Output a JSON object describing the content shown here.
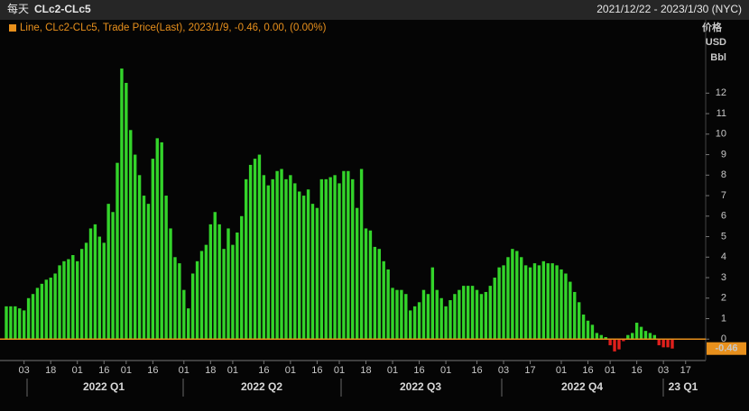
{
  "chart_data": {
    "type": "bar",
    "period": "每天",
    "title": "CLc2-CLc5",
    "date_range": "2021/12/22 - 2023/1/30 (NYC)",
    "legend": "Line, CLc2-CLc5, Trade Price(Last), 2023/1/9, -0.46, 0.00, (0.00%)",
    "y_unit": [
      "价格",
      "USD",
      "Bbl"
    ],
    "quarters": [
      "2022 Q1",
      "2022 Q2",
      "2022 Q3",
      "2022 Q4",
      "23 Q1"
    ],
    "color": "#33d42a",
    "negative_color": "#e0201c",
    "zero_line_color": "#e8901c",
    "ylim": [
      -1,
      15.4
    ],
    "yticks": [
      0,
      1,
      2,
      3,
      4,
      5,
      6,
      7,
      8,
      9,
      10,
      11,
      12
    ],
    "categories": [
      null,
      null,
      null,
      null,
      "03",
      null,
      null,
      null,
      null,
      null,
      "18",
      null,
      null,
      null,
      null,
      null,
      "01",
      null,
      null,
      null,
      null,
      null,
      "16",
      null,
      null,
      null,
      null,
      "01",
      null,
      null,
      null,
      null,
      null,
      "16",
      null,
      null,
      null,
      null,
      null,
      null,
      "01",
      null,
      null,
      null,
      null,
      null,
      "18",
      null,
      null,
      null,
      null,
      "01",
      null,
      null,
      null,
      null,
      null,
      null,
      "16",
      null,
      null,
      null,
      null,
      null,
      "01",
      null,
      null,
      null,
      null,
      null,
      "16",
      null,
      null,
      null,
      null,
      "01",
      null,
      null,
      null,
      null,
      null,
      "18",
      null,
      null,
      null,
      null,
      null,
      "01",
      null,
      null,
      null,
      null,
      null,
      "16",
      null,
      null,
      null,
      null,
      null,
      "01",
      null,
      null,
      null,
      null,
      null,
      null,
      "16",
      null,
      null,
      null,
      null,
      null,
      "03",
      null,
      null,
      null,
      null,
      null,
      "17",
      null,
      null,
      null,
      null,
      null,
      null,
      "01",
      null,
      null,
      null,
      null,
      null,
      "16",
      null,
      null,
      null,
      null,
      "01",
      null,
      null,
      null,
      null,
      null,
      "16",
      null,
      null,
      null,
      null,
      null,
      "03",
      null,
      null,
      null,
      null,
      "17",
      null,
      null
    ],
    "values": [
      1.6,
      1.6,
      1.6,
      1.5,
      1.4,
      2.0,
      2.2,
      2.5,
      2.7,
      2.9,
      3.0,
      3.2,
      3.6,
      3.8,
      3.9,
      4.1,
      3.8,
      4.4,
      4.7,
      5.4,
      5.6,
      5.0,
      4.7,
      6.6,
      6.2,
      8.6,
      13.2,
      12.5,
      10.2,
      9.0,
      8.0,
      7.0,
      6.6,
      8.8,
      9.8,
      9.6,
      7.0,
      5.4,
      4.0,
      3.7,
      2.4,
      1.5,
      3.2,
      3.8,
      4.3,
      4.6,
      5.6,
      6.2,
      5.6,
      4.4,
      5.4,
      4.6,
      5.2,
      6.0,
      7.8,
      8.5,
      8.8,
      9.0,
      8.0,
      7.5,
      7.8,
      8.2,
      8.3,
      7.8,
      8.0,
      7.6,
      7.2,
      7.0,
      7.3,
      6.6,
      6.4,
      7.8,
      7.8,
      7.9,
      8.0,
      7.6,
      8.2,
      8.2,
      7.8,
      6.4,
      8.3,
      5.4,
      5.3,
      4.5,
      4.4,
      3.8,
      3.4,
      2.5,
      2.4,
      2.4,
      2.2,
      1.4,
      1.6,
      1.8,
      2.4,
      2.2,
      3.5,
      2.4,
      2.0,
      1.6,
      1.9,
      2.2,
      2.4,
      2.6,
      2.6,
      2.6,
      2.4,
      2.2,
      2.3,
      2.6,
      3.0,
      3.5,
      3.6,
      4.0,
      4.4,
      4.3,
      4.0,
      3.6,
      3.5,
      3.7,
      3.6,
      3.8,
      3.7,
      3.7,
      3.6,
      3.4,
      3.2,
      2.8,
      2.3,
      1.8,
      1.2,
      0.9,
      0.7,
      0.3,
      0.2,
      0.1,
      -0.3,
      -0.6,
      -0.5,
      -0.1,
      0.2,
      0.3,
      0.8,
      0.6,
      0.4,
      0.3,
      0.2,
      -0.3,
      -0.4,
      -0.4,
      -0.46,
      null,
      null,
      null,
      null,
      null
    ]
  }
}
